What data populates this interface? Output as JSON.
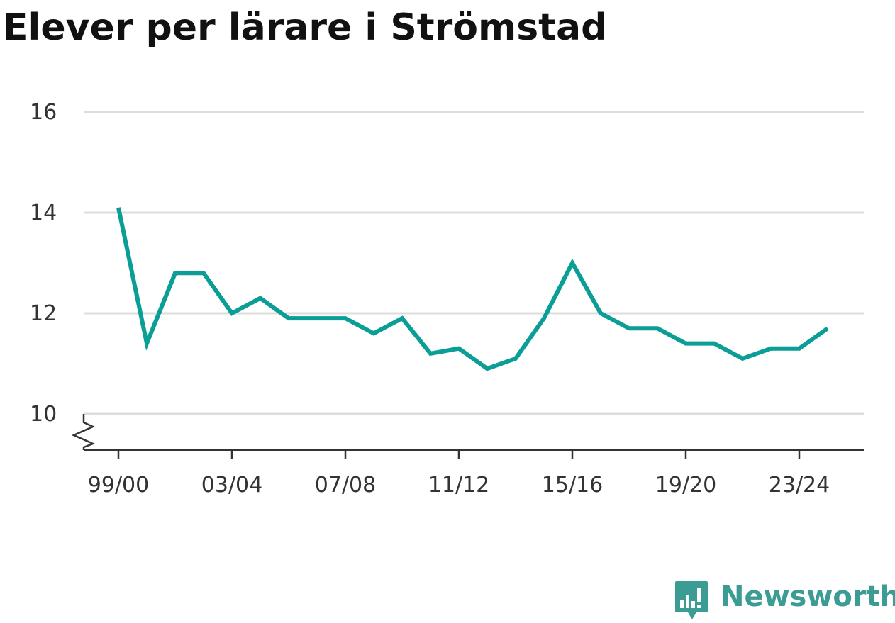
{
  "chart_data": {
    "type": "line",
    "title": "Elever per lärare i Strömstad",
    "xlabel": "",
    "ylabel": "",
    "x": [
      "99/00",
      "00/01",
      "01/02",
      "02/03",
      "03/04",
      "04/05",
      "05/06",
      "06/07",
      "07/08",
      "08/09",
      "09/10",
      "10/11",
      "11/12",
      "12/13",
      "13/14",
      "14/15",
      "15/16",
      "16/17",
      "17/18",
      "18/19",
      "19/20",
      "20/21",
      "21/22",
      "22/23",
      "23/24",
      "24/25"
    ],
    "x_tick_labels": [
      "99/00",
      "03/04",
      "07/08",
      "11/12",
      "15/16",
      "19/20",
      "23/24"
    ],
    "y_ticks": [
      10,
      12,
      14,
      16
    ],
    "ylim": [
      9.3,
      16
    ],
    "y_axis_break": true,
    "grid": true,
    "series": [
      {
        "color": "#0a9e96",
        "values": [
          14.1,
          11.4,
          12.8,
          12.8,
          12.0,
          12.3,
          11.9,
          11.9,
          11.9,
          11.6,
          11.9,
          11.2,
          11.3,
          10.9,
          11.1,
          11.9,
          13.0,
          12.0,
          11.7,
          11.7,
          11.4,
          11.4,
          11.1,
          11.3,
          11.3,
          11.7
        ]
      }
    ]
  },
  "branding": {
    "name": "Newsworthy",
    "icon": "newsworthy-logo-icon",
    "color": "#3b9c93"
  }
}
